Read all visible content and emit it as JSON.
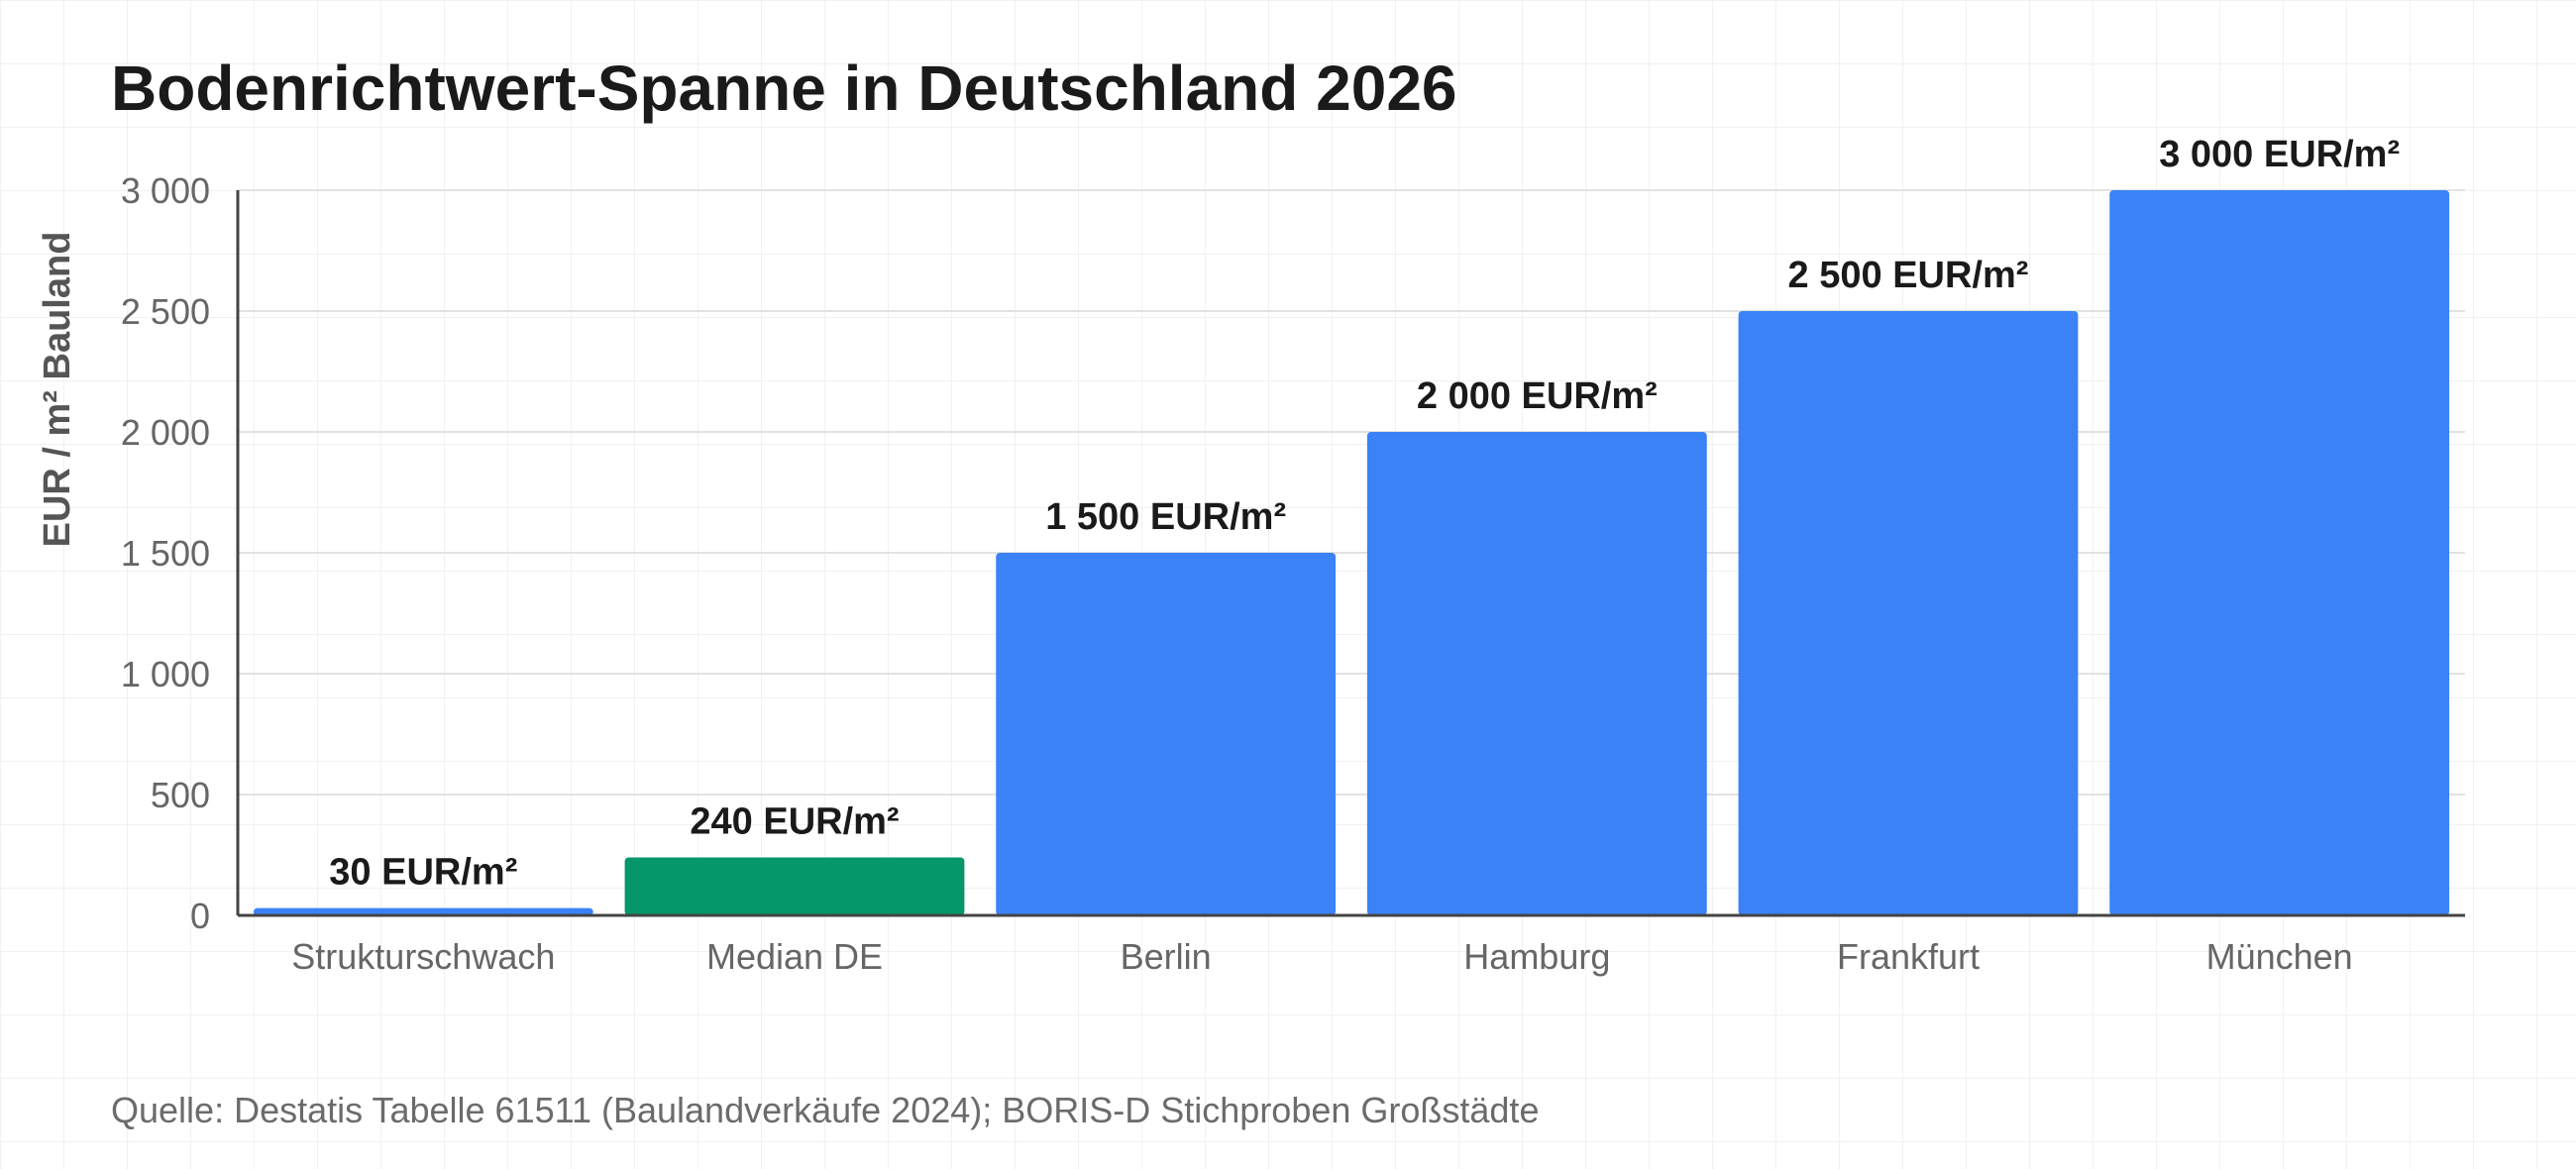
{
  "chart_data": {
    "type": "bar",
    "title": "Bodenrichtwert-Spanne in Deutschland 2026",
    "xlabel": "",
    "ylabel": "EUR / m² Bauland",
    "ylim": [
      0,
      3000
    ],
    "yticks": [
      0,
      500,
      1000,
      1500,
      2000,
      2500,
      3000
    ],
    "ytick_labels": [
      "0",
      "500",
      "1 000",
      "1 500",
      "2 000",
      "2 500",
      "3 000"
    ],
    "categories": [
      "Strukturschwach",
      "Median DE",
      "Berlin",
      "Hamburg",
      "Frankfurt",
      "München"
    ],
    "values": [
      30,
      240,
      1500,
      2000,
      2500,
      3000
    ],
    "data_labels": [
      "30 EUR/m²",
      "240 EUR/m²",
      "1 500 EUR/m²",
      "2 000 EUR/m²",
      "2 500 EUR/m²",
      "3 000 EUR/m²"
    ],
    "bar_colors": [
      "#3b82f6",
      "#059669",
      "#3b82f6",
      "#3b82f6",
      "#3b82f6",
      "#3b82f6"
    ],
    "grid": true,
    "legend": "none",
    "source": "Quelle: Destatis Tabelle 61511 (Baulandverkäufe 2024); BORIS-D Stichproben Großstädte"
  }
}
